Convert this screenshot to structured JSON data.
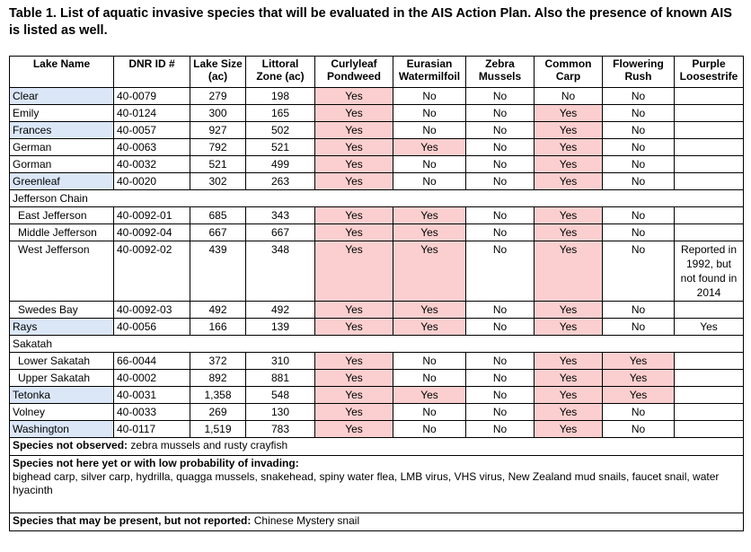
{
  "title": "Table 1.  List of aquatic invasive species that will be evaluated in the AIS Action Plan.  Also the presence of known AIS is listed as well.",
  "table": {
    "header": [
      "Lake Name",
      "DNR ID #",
      "Lake Size\n(ac)",
      "Littoral\nZone (ac)",
      "Curlyleaf\nPondweed",
      "Eurasian\nWatermilfoil",
      "Zebra\nMussels",
      "Common\nCarp",
      "Flowering\nRush",
      "Purple\nLoosestrife"
    ],
    "rows": [
      {
        "cells": [
          "Clear",
          "40-0079",
          "279",
          "198",
          "Yes",
          "No",
          "No",
          "No",
          "No",
          null
        ],
        "shaded": true
      },
      {
        "cells": [
          "Emily",
          "40-0124",
          "300",
          "165",
          "Yes",
          "No",
          "No",
          "Yes",
          "No",
          null
        ]
      },
      {
        "cells": [
          "Frances",
          "40-0057",
          "927",
          "502",
          "Yes",
          "No",
          "No",
          "Yes",
          "No",
          null
        ],
        "shaded": true
      },
      {
        "cells": [
          "German",
          "40-0063",
          "792",
          "521",
          "Yes",
          "Yes",
          "No",
          "Yes",
          "No",
          null
        ]
      },
      {
        "cells": [
          "Gorman",
          "40-0032",
          "521",
          "499",
          "Yes",
          "No",
          "No",
          "Yes",
          "No",
          null
        ]
      },
      {
        "cells": [
          "Greenleaf",
          "40-0020",
          "302",
          "263",
          "Yes",
          "No",
          "No",
          "Yes",
          "No",
          null
        ],
        "shaded": true
      },
      {
        "group": "Jefferson Chain"
      },
      {
        "cells": [
          "East Jefferson",
          "40-0092-01",
          "685",
          "343",
          "Yes",
          "Yes",
          "No",
          "Yes",
          "No",
          null
        ],
        "indent": true
      },
      {
        "cells": [
          "Middle Jefferson",
          "40-0092-04",
          "667",
          "667",
          "Yes",
          "Yes",
          "No",
          "Yes",
          "No",
          null
        ],
        "indent": true
      },
      {
        "cells": [
          "West Jefferson",
          "40-0092-02",
          "439",
          "348",
          "Yes",
          "Yes",
          "No",
          "Yes",
          "No",
          "Reported in 1992, but not found in 2014"
        ],
        "indent": true
      },
      {
        "cells": [
          "Swedes Bay",
          "40-0092-03",
          "492",
          "492",
          "Yes",
          "Yes",
          "No",
          "Yes",
          "No",
          null
        ],
        "indent": true
      },
      {
        "cells": [
          "Rays",
          "40-0056",
          "166",
          "139",
          "Yes",
          "Yes",
          "No",
          "Yes",
          "No",
          "Yes"
        ],
        "shaded": true
      },
      {
        "group": "Sakatah"
      },
      {
        "cells": [
          "Lower Sakatah",
          "66-0044",
          "372",
          "310",
          "Yes",
          "No",
          "No",
          "Yes",
          "Yes",
          null
        ],
        "indent": true
      },
      {
        "cells": [
          "Upper Sakatah",
          "40-0002",
          "892",
          "881",
          "Yes",
          "No",
          "No",
          "Yes",
          "Yes",
          null
        ],
        "indent": true
      },
      {
        "cells": [
          "Tetonka",
          "40-0031",
          "1,358",
          "548",
          "Yes",
          "Yes",
          "No",
          "Yes",
          "Yes",
          null
        ],
        "shaded": true
      },
      {
        "cells": [
          "Volney",
          "40-0033",
          "269",
          "130",
          "Yes",
          "No",
          "No",
          "Yes",
          "No",
          null
        ]
      },
      {
        "cells": [
          "Washington",
          "40-0117",
          "1,519",
          "783",
          "Yes",
          "No",
          "No",
          "Yes",
          "No",
          null
        ],
        "shaded": true
      }
    ],
    "notes": [
      {
        "label": "Species not observed:",
        "text": "zebra mussels and rusty crayfish"
      },
      {
        "label": "Species not here yet or with low probability of invading:",
        "text": "bighead carp, silver carp, hydrilla, quagga mussels, snakehead, spiny water flea, LMB virus, VHS virus, New Zealand mud snails, faucet snail, water hyacinth"
      },
      {
        "label": "Species that may be present, but not reported:",
        "text": "Chinese Mystery snail"
      }
    ]
  }
}
